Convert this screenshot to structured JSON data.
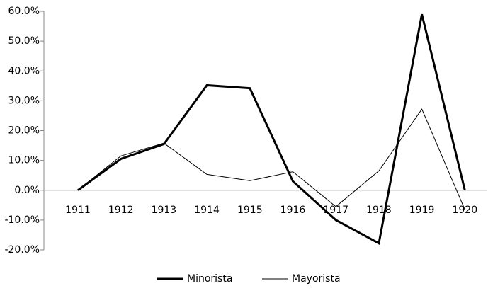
{
  "chart_data": {
    "type": "line",
    "categories": [
      "1911",
      "1912",
      "1913",
      "1914",
      "1915",
      "1916",
      "1917",
      "1918",
      "1919",
      "1920"
    ],
    "series": [
      {
        "name": "Minorista",
        "color": "#000000",
        "values": [
          0,
          10.5,
          15.5,
          35.2,
          34.2,
          3,
          -10,
          -17.8,
          59,
          0
        ]
      },
      {
        "name": "Mayorista",
        "color": "#000000",
        "values": [
          0,
          11.5,
          15.8,
          5.3,
          3.2,
          6.2,
          -5.5,
          6.5,
          27.2,
          -6.5
        ]
      }
    ],
    "ylim": [
      -20,
      60
    ],
    "yticks": [
      {
        "value": -20,
        "label": "-20.0%"
      },
      {
        "value": -10,
        "label": "-10.0%"
      },
      {
        "value": 0,
        "label": "0.0%"
      },
      {
        "value": 10,
        "label": "10.0%"
      },
      {
        "value": 20,
        "label": "20.0%"
      },
      {
        "value": 30,
        "label": "30.0%"
      },
      {
        "value": 40,
        "label": "40.0%"
      },
      {
        "value": 50,
        "label": "50.0%"
      },
      {
        "value": 60,
        "label": "60.0%"
      }
    ],
    "grid": false,
    "legend": "bottom"
  }
}
